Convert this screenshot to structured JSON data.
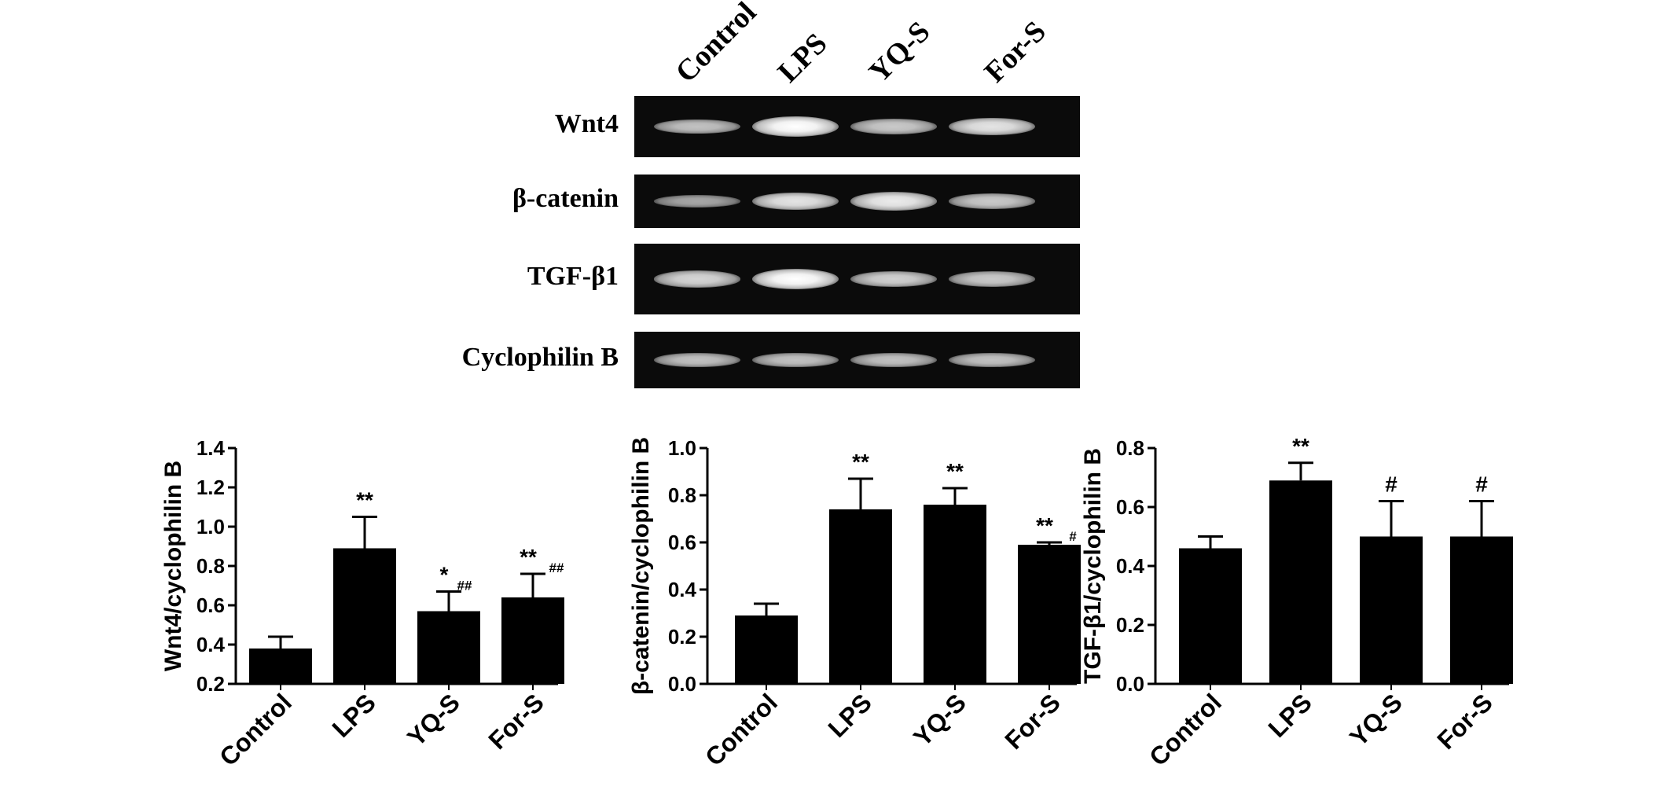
{
  "blot": {
    "lanes": [
      "Control",
      "LPS",
      "YQ-S",
      "For-S"
    ],
    "rows": [
      {
        "label": "Wnt4",
        "intensity": [
          0.55,
          1.0,
          0.6,
          0.8
        ]
      },
      {
        "label": "β-catenin",
        "intensity": [
          0.35,
          0.8,
          0.85,
          0.6
        ]
      },
      {
        "label": "TGF-β1",
        "intensity": [
          0.7,
          1.0,
          0.65,
          0.6
        ]
      },
      {
        "label": "Cyclophilin B",
        "intensity": [
          0.55,
          0.55,
          0.55,
          0.55
        ]
      }
    ]
  },
  "chart_data": [
    {
      "type": "bar",
      "categories": [
        "Control",
        "LPS",
        "YQ-S",
        "For-S"
      ],
      "values": [
        0.38,
        0.89,
        0.57,
        0.64
      ],
      "errors": [
        0.06,
        0.16,
        0.1,
        0.12
      ],
      "annotations": [
        {
          "top": "",
          "sub": ""
        },
        {
          "top": "**",
          "sub": ""
        },
        {
          "top": "*",
          "sub": "##"
        },
        {
          "top": "**",
          "sub": "##"
        }
      ],
      "ylabel": "Wnt4/cyclophilin B",
      "ylim": [
        0.2,
        1.4
      ],
      "yticks": [
        "0.2",
        "0.4",
        "0.6",
        "0.8",
        "1.0",
        "1.2",
        "1.4"
      ],
      "grid": false
    },
    {
      "type": "bar",
      "categories": [
        "Control",
        "LPS",
        "YQ-S",
        "For-S"
      ],
      "values": [
        0.29,
        0.74,
        0.76,
        0.59
      ],
      "errors": [
        0.05,
        0.13,
        0.07,
        0.01
      ],
      "annotations": [
        {
          "top": "",
          "sub": ""
        },
        {
          "top": "**",
          "sub": ""
        },
        {
          "top": "**",
          "sub": ""
        },
        {
          "top": "**",
          "sub": "#"
        }
      ],
      "ylabel": "β-catenin/cyclophilin B",
      "ylim": [
        0.0,
        1.0
      ],
      "yticks": [
        "0.0",
        "0.2",
        "0.4",
        "0.6",
        "0.8",
        "1.0"
      ],
      "grid": false
    },
    {
      "type": "bar",
      "categories": [
        "Control",
        "LPS",
        "YQ-S",
        "For-S"
      ],
      "values": [
        0.46,
        0.69,
        0.5,
        0.5
      ],
      "errors": [
        0.04,
        0.06,
        0.12,
        0.12
      ],
      "annotations": [
        {
          "top": "",
          "sub": ""
        },
        {
          "top": "**",
          "sub": ""
        },
        {
          "top": "#",
          "sub": ""
        },
        {
          "top": "#",
          "sub": ""
        }
      ],
      "ylabel": "TGF-β1/cyclophilin B",
      "ylim": [
        0.0,
        0.8
      ],
      "yticks": [
        "0.0",
        "0.2",
        "0.4",
        "0.6",
        "0.8"
      ],
      "grid": false
    }
  ]
}
